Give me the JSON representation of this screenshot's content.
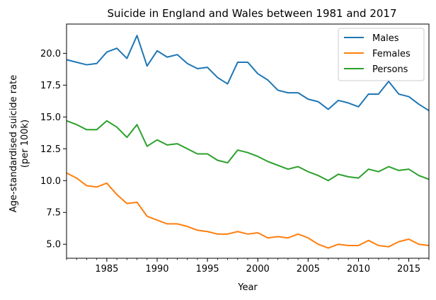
{
  "chart_data": {
    "type": "line",
    "title": "Suicide in England and Wales between 1981 and 2017",
    "xlabel": "Year",
    "ylabel_lines": [
      "Age-standardised suicide rate",
      "(per 100k)"
    ],
    "xlim": [
      1981,
      2017
    ],
    "ylim": [
      3.9,
      22.3
    ],
    "xticks": [
      1985,
      1990,
      1995,
      2000,
      2005,
      2010,
      2015
    ],
    "xtick_labels": [
      "1985",
      "1990",
      "1995",
      "2000",
      "2005",
      "2010",
      "2015"
    ],
    "yticks": [
      5.0,
      7.5,
      10.0,
      12.5,
      15.0,
      17.5,
      20.0
    ],
    "ytick_labels": [
      "5.0",
      "7.5",
      "10.0",
      "12.5",
      "15.0",
      "17.5",
      "20.0"
    ],
    "grid": false,
    "legend_position": "top-right",
    "x": [
      1981,
      1982,
      1983,
      1984,
      1985,
      1986,
      1987,
      1988,
      1989,
      1990,
      1991,
      1992,
      1993,
      1994,
      1995,
      1996,
      1997,
      1998,
      1999,
      2000,
      2001,
      2002,
      2003,
      2004,
      2005,
      2006,
      2007,
      2008,
      2009,
      2010,
      2011,
      2012,
      2013,
      2014,
      2015,
      2016,
      2017
    ],
    "series": [
      {
        "name": "Males",
        "color": "#1f77b4",
        "values": [
          19.5,
          19.3,
          19.1,
          19.2,
          20.1,
          20.4,
          19.6,
          21.4,
          19.0,
          20.2,
          19.7,
          19.9,
          19.2,
          18.8,
          18.9,
          18.1,
          17.6,
          19.3,
          19.3,
          18.4,
          17.9,
          17.1,
          16.9,
          16.9,
          16.4,
          16.2,
          15.6,
          16.3,
          16.1,
          15.8,
          16.8,
          16.8,
          17.8,
          16.8,
          16.6,
          16.0,
          15.5
        ]
      },
      {
        "name": "Females",
        "color": "#ff7f0e",
        "values": [
          10.6,
          10.2,
          9.6,
          9.5,
          9.8,
          8.9,
          8.2,
          8.3,
          7.2,
          6.9,
          6.6,
          6.6,
          6.4,
          6.1,
          6.0,
          5.8,
          5.8,
          6.0,
          5.8,
          5.9,
          5.5,
          5.6,
          5.5,
          5.8,
          5.5,
          5.0,
          4.7,
          5.0,
          4.9,
          4.9,
          5.3,
          4.9,
          4.8,
          5.2,
          5.4,
          5.0,
          4.9
        ]
      },
      {
        "name": "Persons",
        "color": "#2ca02c",
        "values": [
          14.7,
          14.4,
          14.0,
          14.0,
          14.7,
          14.2,
          13.4,
          14.4,
          12.7,
          13.2,
          12.8,
          12.9,
          12.5,
          12.1,
          12.1,
          11.6,
          11.4,
          12.4,
          12.2,
          11.9,
          11.5,
          11.2,
          10.9,
          11.1,
          10.7,
          10.4,
          10.0,
          10.5,
          10.3,
          10.2,
          10.9,
          10.7,
          11.1,
          10.8,
          10.9,
          10.4,
          10.1
        ]
      }
    ]
  }
}
